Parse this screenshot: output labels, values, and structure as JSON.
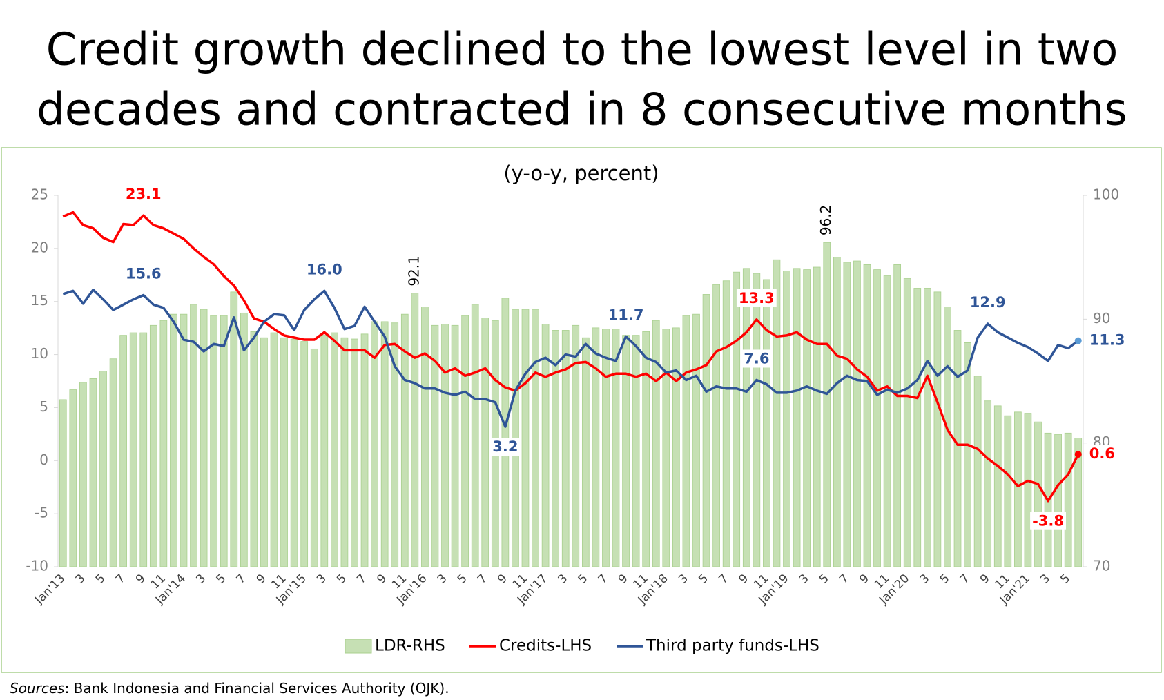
{
  "chart_data": {
    "type": "combo",
    "title": [
      "Credit growth declined to the lowest level in two",
      "decades and contracted in 8 consecutive months"
    ],
    "subtitle": "(y-o-y, percent)",
    "source": {
      "label": "Sources",
      "text": ": Bank Indonesia and Financial Services Authority (OJK)."
    },
    "categories": [
      "Jan'13",
      null,
      "3",
      null,
      "5",
      null,
      "7",
      null,
      "9",
      null,
      "11",
      null,
      "Jan'14",
      null,
      "3",
      null,
      "5",
      null,
      "7",
      null,
      "9",
      null,
      "11",
      null,
      "Jan'15",
      null,
      "3",
      null,
      "5",
      null,
      "7",
      null,
      "9",
      null,
      "11",
      null,
      "Jan'16",
      null,
      "3",
      null,
      "5",
      null,
      "7",
      null,
      "9",
      null,
      "11",
      null,
      "Jan'17",
      null,
      "3",
      null,
      "5",
      null,
      "7",
      null,
      "9",
      null,
      "11",
      null,
      "Jan'18",
      null,
      "3",
      null,
      "5",
      null,
      "7",
      null,
      "9",
      null,
      "11",
      null,
      "Jan'19",
      null,
      "3",
      null,
      "5",
      null,
      "7",
      null,
      "9",
      null,
      "11",
      null,
      "Jan'20",
      null,
      "3",
      null,
      "5",
      null,
      "7",
      null,
      "9",
      null,
      "11",
      null,
      "Jan'21",
      null,
      "3",
      null,
      "5",
      null
    ],
    "ylim": [
      -10,
      25
    ],
    "yticks": [
      -10,
      -5,
      0,
      5,
      10,
      15,
      20,
      25
    ],
    "y2lim": [
      70,
      100
    ],
    "y2ticks": [
      70,
      80,
      90,
      100
    ],
    "grid": false,
    "legend": "bottom",
    "series": [
      {
        "name": "LDR-RHS",
        "type": "bar",
        "axis": "y2",
        "color": "#c6e0b4",
        "values": [
          83.5,
          84.3,
          84.9,
          85.2,
          85.8,
          86.8,
          88.7,
          88.9,
          88.9,
          89.5,
          89.9,
          90.4,
          90.4,
          91.2,
          90.8,
          90.3,
          90.3,
          92.2,
          90.5,
          89.0,
          88.5,
          88.9,
          88.5,
          88.4,
          88.2,
          87.6,
          88.7,
          88.9,
          88.5,
          88.4,
          88.8,
          89.8,
          89.8,
          89.7,
          90.4,
          92.1,
          91.0,
          89.5,
          89.6,
          89.5,
          90.3,
          91.2,
          90.1,
          89.9,
          91.7,
          90.8,
          90.8,
          90.8,
          89.6,
          89.1,
          89.1,
          89.5,
          88.5,
          89.3,
          89.2,
          89.2,
          88.7,
          88.7,
          89.0,
          89.9,
          89.2,
          89.3,
          90.3,
          90.4,
          92.0,
          92.8,
          93.1,
          93.8,
          94.1,
          93.7,
          93.2,
          94.8,
          93.9,
          94.1,
          94.0,
          94.2,
          96.2,
          95.0,
          94.6,
          94.7,
          94.4,
          94.0,
          93.5,
          94.4,
          93.3,
          92.5,
          92.5,
          92.2,
          91.0,
          89.1,
          88.1,
          85.4,
          83.4,
          83.0,
          82.2,
          82.5,
          82.4,
          81.7,
          80.8,
          80.7,
          80.8,
          80.4
        ],
        "value_labels": {
          "35": "92.1",
          "76": "96.2"
        }
      },
      {
        "name": "Credits-LHS",
        "type": "line",
        "color": "#ff0000",
        "values": [
          23.0,
          23.4,
          22.2,
          21.9,
          21.0,
          20.6,
          22.3,
          22.2,
          23.1,
          22.2,
          21.9,
          21.4,
          20.9,
          20.0,
          19.2,
          18.5,
          17.4,
          16.5,
          15.1,
          13.4,
          13.1,
          12.4,
          11.8,
          11.6,
          11.4,
          11.4,
          12.1,
          11.3,
          10.4,
          10.4,
          10.4,
          9.7,
          10.9,
          11.0,
          10.3,
          9.7,
          10.1,
          9.4,
          8.3,
          8.7,
          8.0,
          8.3,
          8.7,
          7.6,
          6.9,
          6.6,
          7.3,
          8.3,
          7.9,
          8.3,
          8.6,
          9.2,
          9.3,
          8.7,
          7.9,
          8.2,
          8.2,
          7.9,
          8.2,
          7.5,
          8.3,
          7.5,
          8.3,
          8.6,
          9.0,
          10.3,
          10.7,
          11.3,
          12.1,
          13.3,
          12.3,
          11.7,
          11.8,
          12.1,
          11.4,
          11.0,
          11.0,
          9.9,
          9.6,
          8.6,
          7.9,
          6.6,
          7.0,
          6.1,
          6.1,
          5.9,
          8.0,
          5.5,
          2.9,
          1.5,
          1.5,
          1.1,
          0.2,
          -0.5,
          -1.3,
          -2.4,
          -1.9,
          -2.2,
          -3.8,
          -2.3,
          -1.3,
          0.6
        ],
        "value_labels": {
          "8": "23.1",
          "69": "13.3",
          "98": "-3.8",
          "101": "0.6"
        }
      },
      {
        "name": "Third party funds-LHS",
        "type": "line",
        "color": "#2f5597",
        "values": [
          15.7,
          16.0,
          14.8,
          16.1,
          15.2,
          14.2,
          14.7,
          15.2,
          15.6,
          14.7,
          14.4,
          13.1,
          11.4,
          11.2,
          10.3,
          11.0,
          10.8,
          13.5,
          10.4,
          11.6,
          13.1,
          13.8,
          13.7,
          12.3,
          14.2,
          15.2,
          16.0,
          14.4,
          12.4,
          12.7,
          14.5,
          13.1,
          11.7,
          8.9,
          7.6,
          7.3,
          6.8,
          6.8,
          6.4,
          6.2,
          6.5,
          5.8,
          5.8,
          5.5,
          3.2,
          6.6,
          8.2,
          9.3,
          9.7,
          9.0,
          10.0,
          9.8,
          11.0,
          10.1,
          9.7,
          9.4,
          11.7,
          10.8,
          9.7,
          9.3,
          8.3,
          8.5,
          7.6,
          8.0,
          6.5,
          7.0,
          6.8,
          6.8,
          6.5,
          7.6,
          7.2,
          6.4,
          6.4,
          6.6,
          7.0,
          6.6,
          6.3,
          7.3,
          8.0,
          7.6,
          7.5,
          6.2,
          6.7,
          6.4,
          6.8,
          7.6,
          9.4,
          8.0,
          8.9,
          7.9,
          8.5,
          11.6,
          12.9,
          12.1,
          11.6,
          11.1,
          10.7,
          10.1,
          9.4,
          10.9,
          10.6,
          11.3
        ],
        "value_labels": {
          "8": "15.6",
          "26": "16.0",
          "44": "3.2",
          "56": "11.7",
          "69": "7.6",
          "92": "12.9",
          "101": "11.3"
        }
      }
    ]
  }
}
